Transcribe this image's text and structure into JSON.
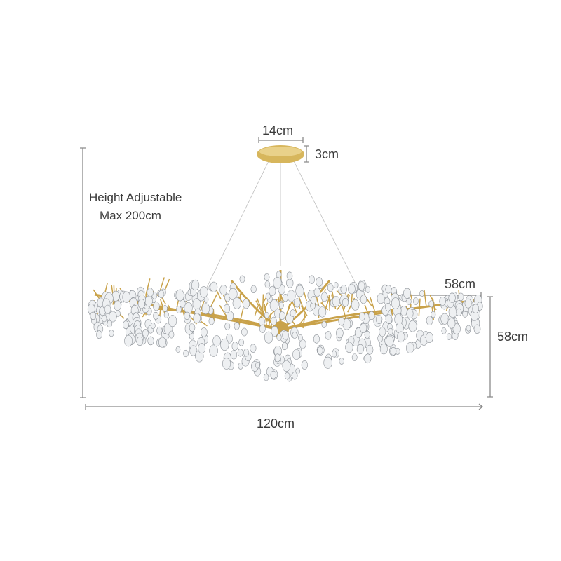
{
  "labels": {
    "canopy_width": "14cm",
    "canopy_height": "3cm",
    "height_line1": "Height  Adjustable",
    "height_line2": "Max 200cm",
    "depth": "58cm",
    "body_height": "58cm",
    "total_width": "120cm"
  },
  "colors": {
    "gold": "#c9a24a",
    "dimension_line": "#888888"
  }
}
